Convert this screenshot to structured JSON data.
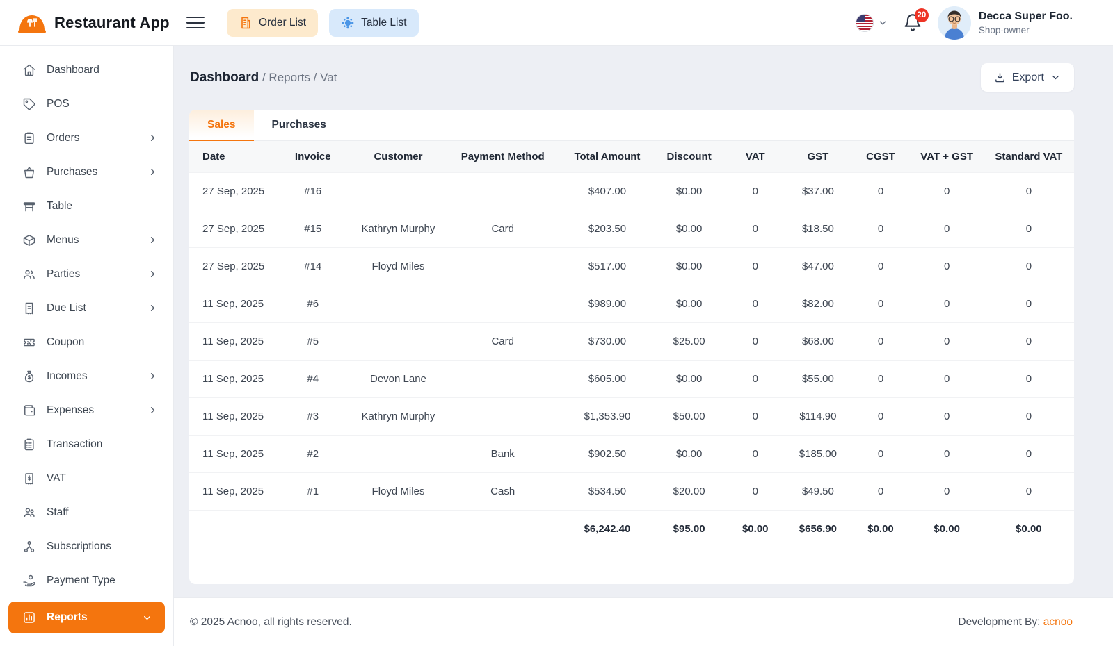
{
  "app": {
    "title": "Restaurant App"
  },
  "header": {
    "order_list_label": "Order List",
    "table_list_label": "Table List",
    "notification_count": "20",
    "user": {
      "name": "Decca Super Foo.",
      "role": "Shop-owner"
    }
  },
  "sidebar": {
    "items": [
      {
        "label": "Dashboard",
        "icon": "home",
        "chevron": false,
        "active": false
      },
      {
        "label": "POS",
        "icon": "tag",
        "chevron": false,
        "active": false
      },
      {
        "label": "Orders",
        "icon": "clipboard",
        "chevron": true,
        "active": false
      },
      {
        "label": "Purchases",
        "icon": "basket",
        "chevron": true,
        "active": false
      },
      {
        "label": "Table",
        "icon": "table",
        "chevron": false,
        "active": false
      },
      {
        "label": "Menus",
        "icon": "package",
        "chevron": true,
        "active": false
      },
      {
        "label": "Parties",
        "icon": "users",
        "chevron": true,
        "active": false
      },
      {
        "label": "Due List",
        "icon": "due-receipt",
        "chevron": true,
        "active": false
      },
      {
        "label": "Coupon",
        "icon": "ticket",
        "chevron": false,
        "active": false
      },
      {
        "label": "Incomes",
        "icon": "money-bag",
        "chevron": true,
        "active": false
      },
      {
        "label": "Expenses",
        "icon": "wallet",
        "chevron": true,
        "active": false
      },
      {
        "label": "Transaction",
        "icon": "clipboard-list",
        "chevron": false,
        "active": false
      },
      {
        "label": "VAT",
        "icon": "receipt-dollar",
        "chevron": false,
        "active": false
      },
      {
        "label": "Staff",
        "icon": "staff",
        "chevron": false,
        "active": false
      },
      {
        "label": "Subscriptions",
        "icon": "subscription",
        "chevron": false,
        "active": false
      },
      {
        "label": "Payment Type",
        "icon": "hand-coin",
        "chevron": false,
        "active": false
      },
      {
        "label": "Reports",
        "icon": "bar-chart",
        "chevron": "down",
        "active": true
      }
    ]
  },
  "breadcrumb": {
    "root": "Dashboard",
    "separator1": " / ",
    "section": "Reports",
    "separator2": " / ",
    "page": "Vat"
  },
  "toolbar": {
    "export_label": "Export"
  },
  "tabs": [
    {
      "label": "Sales",
      "active": true
    },
    {
      "label": "Purchases",
      "active": false
    }
  ],
  "table": {
    "columns": [
      "Date",
      "Invoice",
      "Customer",
      "Payment Method",
      "Total Amount",
      "Discount",
      "VAT",
      "GST",
      "CGST",
      "VAT + GST",
      "Standard VAT"
    ],
    "rows": [
      [
        "27 Sep, 2025",
        "#16",
        "",
        "",
        "$407.00",
        "$0.00",
        "0",
        "$37.00",
        "0",
        "0",
        "0"
      ],
      [
        "27 Sep, 2025",
        "#15",
        "Kathryn Murphy",
        "Card",
        "$203.50",
        "$0.00",
        "0",
        "$18.50",
        "0",
        "0",
        "0"
      ],
      [
        "27 Sep, 2025",
        "#14",
        "Floyd Miles",
        "",
        "$517.00",
        "$0.00",
        "0",
        "$47.00",
        "0",
        "0",
        "0"
      ],
      [
        "11 Sep, 2025",
        "#6",
        "",
        "",
        "$989.00",
        "$0.00",
        "0",
        "$82.00",
        "0",
        "0",
        "0"
      ],
      [
        "11 Sep, 2025",
        "#5",
        "",
        "Card",
        "$730.00",
        "$25.00",
        "0",
        "$68.00",
        "0",
        "0",
        "0"
      ],
      [
        "11 Sep, 2025",
        "#4",
        "Devon Lane",
        "",
        "$605.00",
        "$0.00",
        "0",
        "$55.00",
        "0",
        "0",
        "0"
      ],
      [
        "11 Sep, 2025",
        "#3",
        "Kathryn Murphy",
        "",
        "$1,353.90",
        "$50.00",
        "0",
        "$114.90",
        "0",
        "0",
        "0"
      ],
      [
        "11 Sep, 2025",
        "#2",
        "",
        "Bank",
        "$902.50",
        "$0.00",
        "0",
        "$185.00",
        "0",
        "0",
        "0"
      ],
      [
        "11 Sep, 2025",
        "#1",
        "Floyd Miles",
        "Cash",
        "$534.50",
        "$20.00",
        "0",
        "$49.50",
        "0",
        "0",
        "0"
      ]
    ],
    "totals": [
      "",
      "",
      "",
      "",
      "$6,242.40",
      "$95.00",
      "$0.00",
      "$656.90",
      "$0.00",
      "$0.00",
      "$0.00"
    ]
  },
  "footer": {
    "copyright": "© 2025 Acnoo, all rights reserved.",
    "dev_prefix": "Development By: ",
    "dev_link": "acnoo"
  },
  "colors": {
    "accent_orange": "#f4750e",
    "order_list_bg": "#fdeacd",
    "table_list_bg": "#d8e9fb",
    "table_list_icon_blue": "#4b96e6",
    "badge_red": "#ee3425"
  }
}
